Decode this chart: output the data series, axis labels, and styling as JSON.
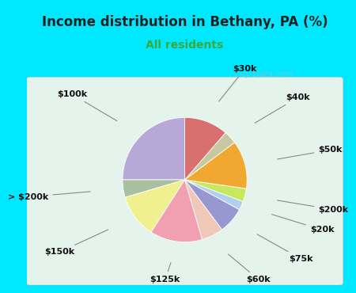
{
  "title": "Income distribution in Bethany, PA (%)",
  "subtitle": "All residents",
  "subtitle_color": "#3aaa3a",
  "title_fontsize": 12,
  "subtitle_fontsize": 10,
  "bg_outer": "#00e8ff",
  "bg_chart_top": "#d8f0e8",
  "bg_chart_bottom": "#e8f8f0",
  "watermark": "City-Data.com",
  "slices": [
    {
      "label": "$100k",
      "value": 22,
      "color": "#b8a8d8"
    },
    {
      "label": "> $200k",
      "value": 4,
      "color": "#a8c0a0"
    },
    {
      "label": "$150k",
      "value": 10,
      "color": "#f0f090"
    },
    {
      "label": "$125k",
      "value": 12,
      "color": "#f0a0b0"
    },
    {
      "label": "$60k",
      "value": 5,
      "color": "#f0c8b8"
    },
    {
      "label": "$75k",
      "value": 6,
      "color": "#9898d0"
    },
    {
      "label": "$20k",
      "value": 2,
      "color": "#b0d0f0"
    },
    {
      "label": "$200k",
      "value": 3,
      "color": "#c8e860"
    },
    {
      "label": "$50k",
      "value": 11,
      "color": "#f0a830"
    },
    {
      "label": "$40k",
      "value": 3,
      "color": "#c8c8a0"
    },
    {
      "label": "$30k",
      "value": 10,
      "color": "#d87070"
    }
  ]
}
